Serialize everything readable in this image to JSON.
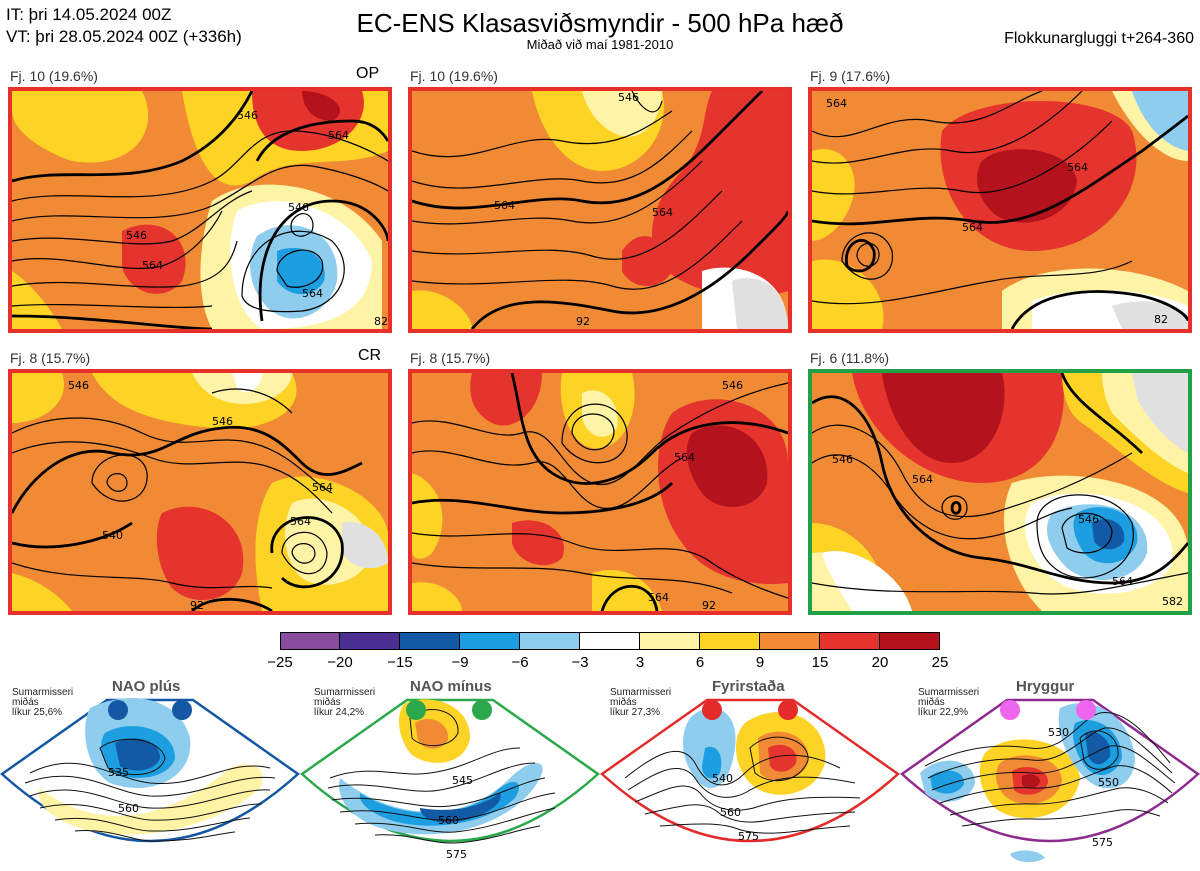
{
  "header": {
    "init_time": "IT: þri 14.05.2024 00Z",
    "valid_time": "VT: þri 28.05.2024 00Z  (+336h)",
    "title": "EC-ENS Klasasviðsmyndir - 500 hPa hæð",
    "subtitle": "Miðað við maí 1981-2010",
    "window": "Flokkunargluggi t+264-360"
  },
  "panels": [
    {
      "label": "Fj. 10 (19.6%)",
      "tag": "OP",
      "border": "#e8302a",
      "contours": [
        "546",
        "564",
        "546",
        "546",
        "564",
        "564",
        "82"
      ]
    },
    {
      "label": "Fj. 10 (19.6%)",
      "tag": "",
      "border": "#e8302a",
      "contours": [
        "564",
        "564",
        "546",
        "92"
      ]
    },
    {
      "label": "Fj. 9 (17.6%)",
      "tag": "",
      "border": "#e8302a",
      "contours": [
        "564",
        "564",
        "564",
        "82"
      ]
    },
    {
      "label": "Fj. 8 (15.7%)",
      "tag": "CR",
      "border": "#e8302a",
      "contours": [
        "546",
        "564",
        "546",
        "564",
        "540",
        "92"
      ]
    },
    {
      "label": "Fj. 8 (15.7%)",
      "tag": "",
      "border": "#e8302a",
      "contours": [
        "546",
        "564",
        "564",
        "92"
      ]
    },
    {
      "label": "Fj. 6 (11.8%)",
      "tag": "",
      "border": "#22a047",
      "contours": [
        "546",
        "546",
        "564",
        "564",
        "582"
      ]
    }
  ],
  "colorbar": {
    "ticks": [
      "−25",
      "−20",
      "−15",
      "−9",
      "−6",
      "−3",
      "3",
      "6",
      "9",
      "15",
      "20",
      "25"
    ],
    "colors": [
      "#8a4c9e",
      "#4b2f93",
      "#135aa6",
      "#1d9ee0",
      "#8fcdef",
      "#ffffff",
      "#fff3a6",
      "#fdd325",
      "#f08a34",
      "#e5342d",
      "#b4121c"
    ]
  },
  "regimes": [
    {
      "name": "NAO plús",
      "season": "Sumarmisseri",
      "median": "miðás",
      "prob": "líkur 25,6%",
      "color": "#1457a4",
      "contours": [
        "535",
        "560"
      ]
    },
    {
      "name": "NAO mínus",
      "season": "Sumarmisseri",
      "median": "miðás",
      "prob": "líkur 24,2%",
      "color": "#2aa84a",
      "contours": [
        "545",
        "560",
        "575"
      ]
    },
    {
      "name": "Fyrirstaða",
      "season": "Sumarmisseri",
      "median": "miðás",
      "prob": "líkur 27,3%",
      "color": "#e32b2b",
      "contours": [
        "540",
        "560",
        "575"
      ]
    },
    {
      "name": "Hryggur",
      "season": "Sumarmisseri",
      "median": "miðás",
      "prob": "líkur 22,9%",
      "color": "#8e2a8e",
      "contours": [
        "530",
        "550",
        "575"
      ]
    }
  ]
}
